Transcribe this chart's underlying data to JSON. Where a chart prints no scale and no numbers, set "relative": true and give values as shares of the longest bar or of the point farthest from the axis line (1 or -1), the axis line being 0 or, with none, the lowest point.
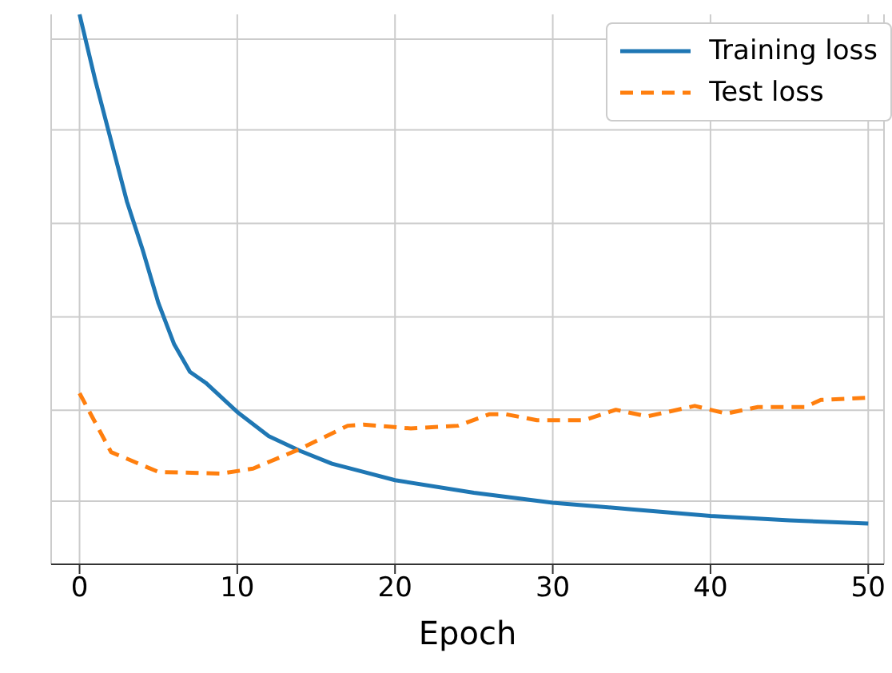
{
  "chart_data": {
    "type": "line",
    "relative": true,
    "xlabel": "Epoch",
    "xlim": [
      -1.8,
      51
    ],
    "xticks": [
      0,
      10,
      20,
      30,
      40,
      50
    ],
    "grid": true,
    "legend": "top right",
    "tick_labels": "x",
    "marker": "none",
    "series": [
      {
        "name": "Training loss",
        "color": "#1f77b4",
        "line_style": "solid",
        "x": [
          0,
          1,
          2,
          3,
          4,
          5,
          6,
          7,
          8,
          10,
          12,
          14,
          16,
          18,
          20,
          25,
          30,
          35,
          40,
          45,
          50
        ],
        "values": [
          1.0,
          0.88,
          0.77,
          0.66,
          0.572,
          0.475,
          0.4,
          0.35,
          0.33,
          0.277,
          0.233,
          0.206,
          0.183,
          0.168,
          0.153,
          0.13,
          0.112,
          0.1,
          0.088,
          0.08,
          0.074
        ]
      },
      {
        "name": "Test loss",
        "color": "#ff7f0e",
        "line_style": "dashed",
        "x": [
          0,
          2,
          5,
          9,
          11,
          14,
          17,
          18,
          21,
          24,
          26,
          27,
          29,
          32,
          34,
          36,
          39,
          41,
          43,
          46,
          47,
          50
        ],
        "values": [
          0.311,
          0.204,
          0.168,
          0.165,
          0.174,
          0.21,
          0.252,
          0.254,
          0.247,
          0.252,
          0.273,
          0.273,
          0.262,
          0.262,
          0.281,
          0.269,
          0.288,
          0.274,
          0.286,
          0.286,
          0.299,
          0.303
        ]
      }
    ]
  }
}
